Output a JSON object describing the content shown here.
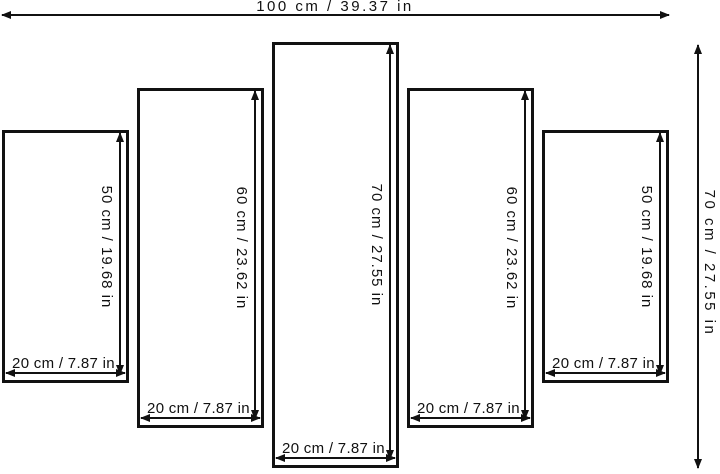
{
  "diagram": {
    "kind": "five-panel-split-canvas-size-guide",
    "total_width": {
      "label": "100 cm / 39.37 in",
      "cm": 100,
      "in": 39.37
    },
    "total_height": {
      "label": "70 cm / 27.55 in",
      "cm": 70,
      "in": 27.55
    },
    "panels": [
      {
        "position": "far-left",
        "height_label": "50 cm / 19.68 in",
        "width_label": "20 cm / 7.87 in",
        "height_cm": 50,
        "width_cm": 20
      },
      {
        "position": "left",
        "height_label": "60 cm / 23.62 in",
        "width_label": "20 cm / 7.87 in",
        "height_cm": 60,
        "width_cm": 20
      },
      {
        "position": "center",
        "height_label": "70 cm / 27.55 in",
        "width_label": "20 cm / 7.87 in",
        "height_cm": 70,
        "width_cm": 20
      },
      {
        "position": "right",
        "height_label": "60 cm / 23.62 in",
        "width_label": "20 cm / 7.87 in",
        "height_cm": 60,
        "width_cm": 20
      },
      {
        "position": "far-right",
        "height_label": "50 cm / 19.68 in",
        "width_label": "20 cm / 7.87 in",
        "height_cm": 50,
        "width_cm": 20
      }
    ],
    "colors": {
      "line": "#111111",
      "background": "#ffffff"
    }
  }
}
